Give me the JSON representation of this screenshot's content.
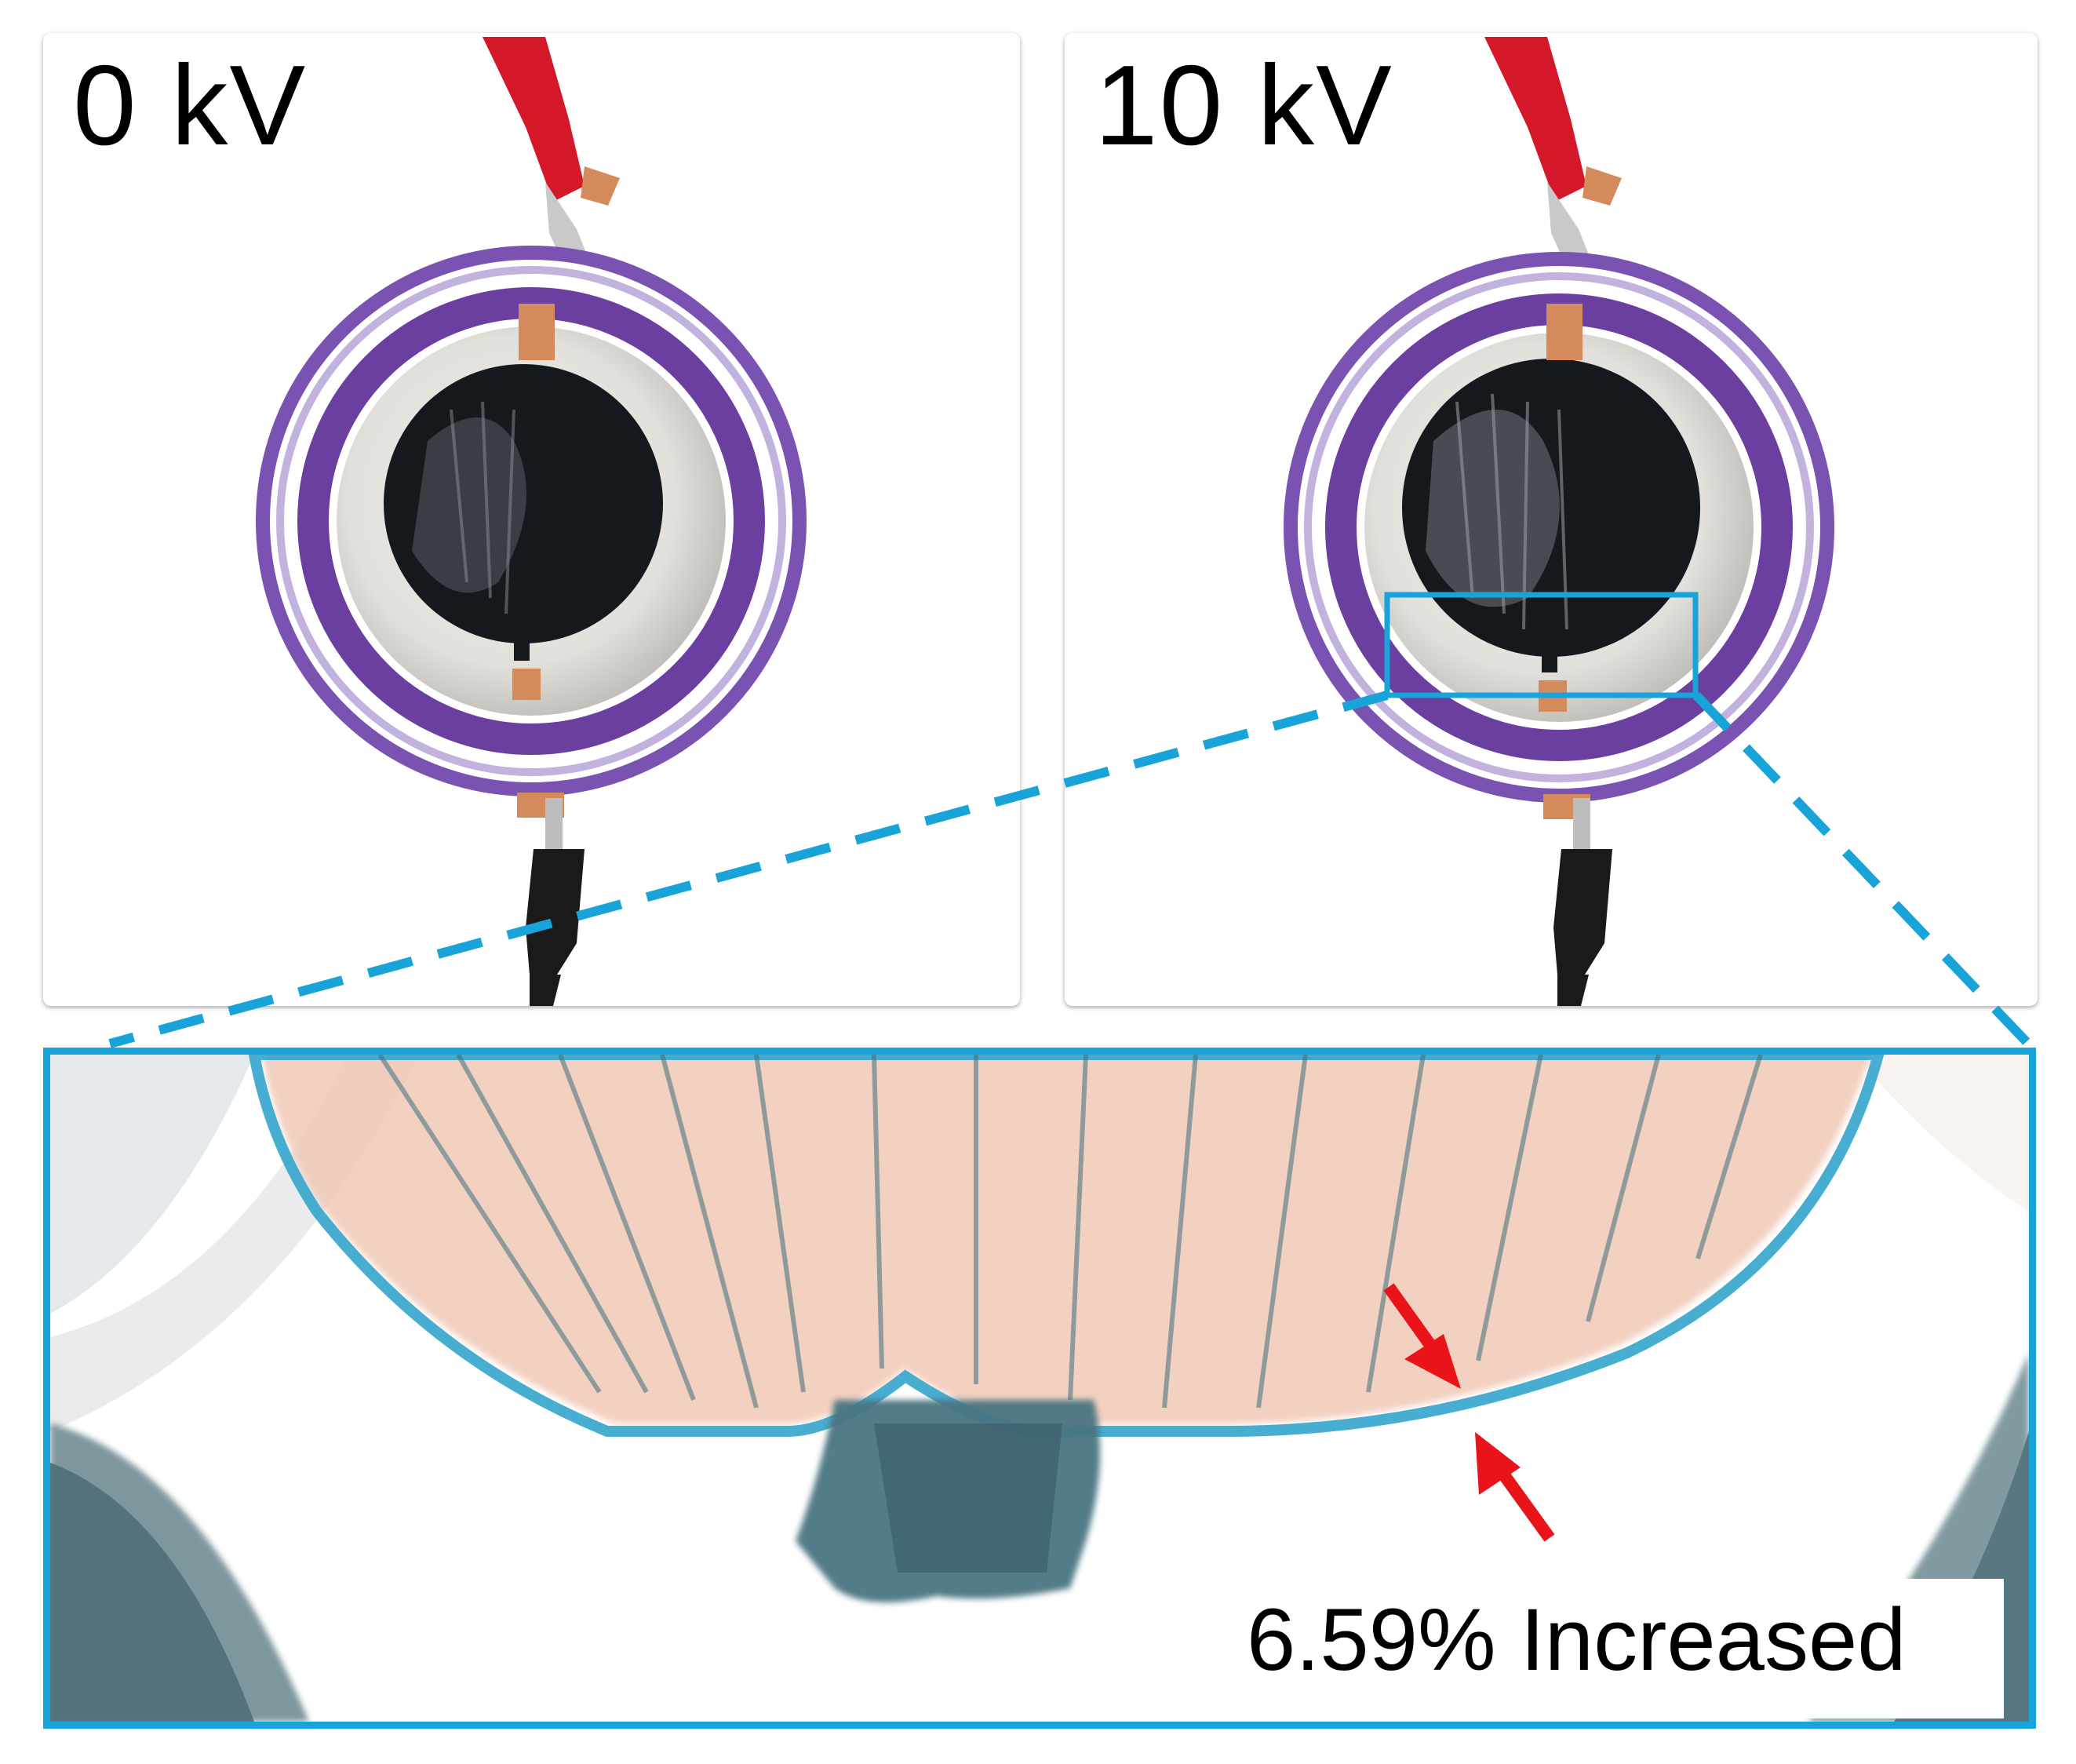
{
  "panels": [
    {
      "label": "0 kV"
    },
    {
      "label": "10 kV"
    }
  ],
  "zoom": {
    "annotation": "6.59% Increased"
  },
  "colors": {
    "highlight": "#18a3d9",
    "arrow": "#e8141a",
    "frame_purple": "#6b3fa0",
    "electrode_black": "#15181c",
    "clip_red": "#d4182a",
    "clip_black": "#1a1a1a",
    "copper_tape": "#d48a5a"
  },
  "icons": {
    "arrows": "red-double-arrow-icon"
  }
}
